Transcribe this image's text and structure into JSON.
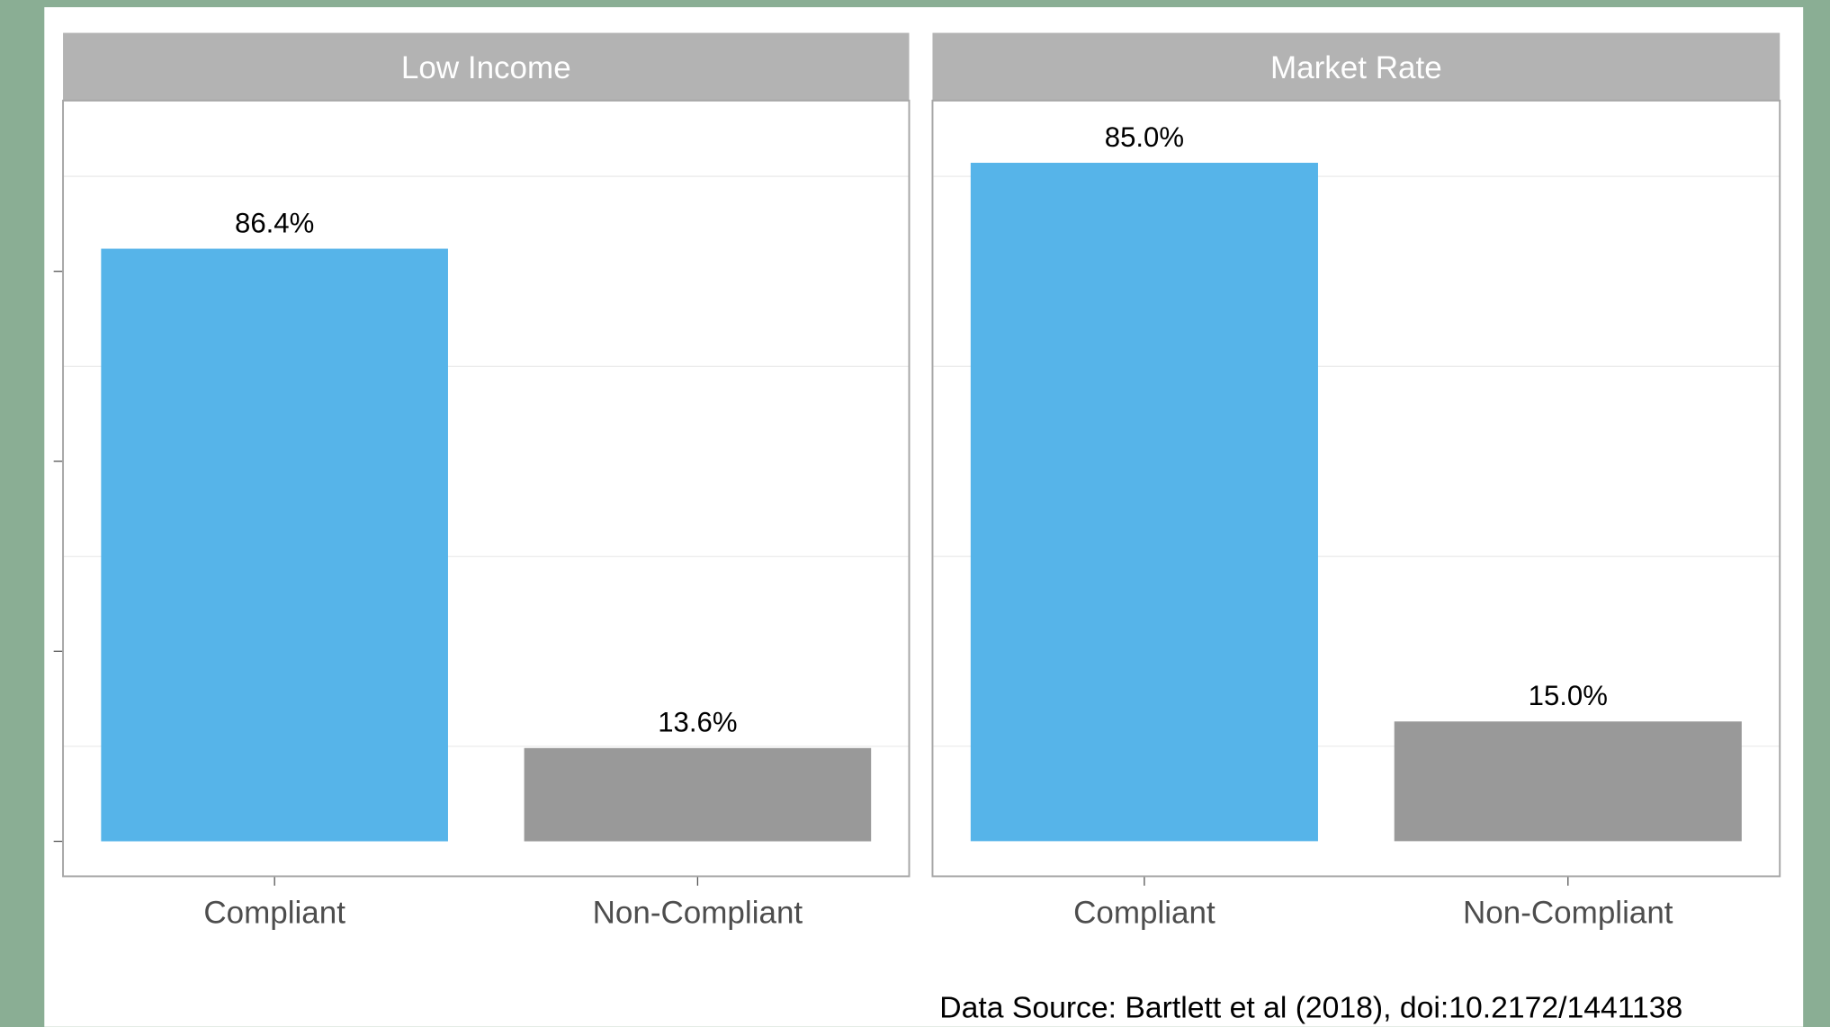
{
  "chart_data": [
    {
      "type": "bar",
      "title": "Low Income",
      "categories": [
        "Compliant",
        "Non-Compliant"
      ],
      "values": [
        86.4,
        13.6
      ],
      "value_labels": [
        "86.4%",
        "13.6%"
      ],
      "colors": [
        "#56b4e9",
        "#999999"
      ],
      "ylim": [
        -5.1,
        108.0
      ],
      "yticks": [
        0,
        27.7,
        55.4,
        83.1
      ],
      "grid": true
    },
    {
      "type": "bar",
      "title": "Market Rate",
      "categories": [
        "Compliant",
        "Non-Compliant"
      ],
      "values": [
        85.0,
        15.0
      ],
      "value_labels": [
        "85.0%",
        "15.0%"
      ],
      "colors": [
        "#56b4e9",
        "#999999"
      ],
      "ylim": [
        -4.4,
        92.8
      ],
      "yticks": [
        0,
        23.8,
        47.6,
        71.4
      ],
      "grid": true
    }
  ],
  "caption": "Data Source: Bartlett et al (2018), doi:10.2172/1441138"
}
